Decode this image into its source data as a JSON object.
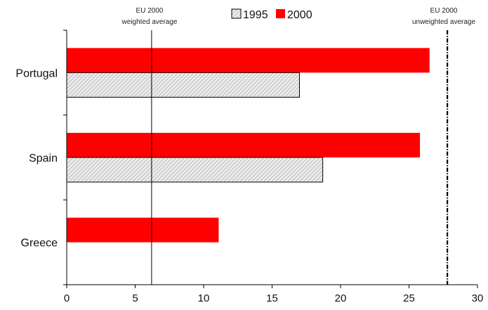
{
  "chart_data": {
    "type": "bar",
    "orientation": "horizontal",
    "categories": [
      "Portugal",
      "Spain",
      "Greece"
    ],
    "series": [
      {
        "name": "1995",
        "values": [
          17.0,
          18.7,
          null
        ],
        "color": "#d8d8d8",
        "pattern": "diagonal-hatch"
      },
      {
        "name": "2000",
        "values": [
          26.5,
          25.8,
          11.1
        ],
        "color": "#ff0000"
      }
    ],
    "xlim": [
      0,
      30
    ],
    "xticks": [
      0,
      5,
      10,
      15,
      20,
      25,
      30
    ],
    "grid": false,
    "legend_position": "top-center",
    "reference_lines": [
      {
        "label_line1": "EU 2000",
        "label_line2": "weighted average",
        "value": 6.2,
        "style": "solid"
      },
      {
        "label_line1": "EU 2000",
        "label_line2": "unweighted average",
        "value": 27.8,
        "style": "dash-dot"
      }
    ],
    "title": "",
    "xlabel": "",
    "ylabel": ""
  }
}
